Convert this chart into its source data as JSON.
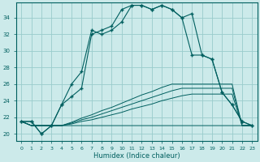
{
  "xlabel": "Humidex (Indice chaleur)",
  "x_ticks": [
    0,
    1,
    2,
    3,
    4,
    5,
    6,
    7,
    8,
    9,
    10,
    11,
    12,
    13,
    14,
    15,
    16,
    17,
    18,
    19,
    20,
    21,
    22,
    23
  ],
  "y_ticks": [
    20,
    22,
    24,
    26,
    28,
    30,
    32,
    34
  ],
  "ylim": [
    19.2,
    35.8
  ],
  "xlim": [
    -0.5,
    23.5
  ],
  "bg_color": "#cceaea",
  "line_color": "#005f5f",
  "grid_color": "#99cccc",
  "series": {
    "curve1": [
      21.5,
      21.5,
      20.0,
      21.0,
      23.5,
      26.0,
      27.5,
      32.5,
      32.0,
      32.5,
      33.5,
      35.5,
      35.5,
      35.0,
      35.5,
      35.0,
      34.0,
      34.5,
      29.5,
      29.0,
      25.0,
      23.5,
      21.5,
      21.0
    ],
    "curve2": [
      21.5,
      21.5,
      20.0,
      21.0,
      23.5,
      24.5,
      25.5,
      32.0,
      32.5,
      33.0,
      35.0,
      35.5,
      35.5,
      35.0,
      35.5,
      35.0,
      34.0,
      29.5,
      29.5,
      29.0,
      25.0,
      23.5,
      21.5,
      21.0
    ],
    "flat1": [
      21.5,
      21.0,
      21.0,
      21.0,
      21.0,
      21.0,
      21.0,
      21.0,
      21.0,
      21.0,
      21.0,
      21.0,
      21.0,
      21.0,
      21.0,
      21.0,
      21.0,
      21.0,
      21.0,
      21.0,
      21.0,
      21.0,
      21.0,
      21.0
    ],
    "diag1": [
      21.5,
      21.0,
      21.0,
      21.0,
      21.0,
      21.2,
      21.5,
      21.7,
      22.0,
      22.3,
      22.6,
      23.0,
      23.3,
      23.6,
      24.0,
      24.3,
      24.6,
      24.8,
      24.8,
      24.8,
      24.8,
      24.8,
      21.0,
      21.0
    ],
    "diag2": [
      21.5,
      21.0,
      21.0,
      21.0,
      21.0,
      21.3,
      21.7,
      22.0,
      22.4,
      22.8,
      23.2,
      23.6,
      24.0,
      24.4,
      24.8,
      25.2,
      25.5,
      25.5,
      25.5,
      25.5,
      25.5,
      25.5,
      21.0,
      21.0
    ],
    "diag3": [
      21.5,
      21.0,
      21.0,
      21.0,
      21.0,
      21.4,
      21.9,
      22.3,
      22.8,
      23.2,
      23.7,
      24.2,
      24.7,
      25.1,
      25.6,
      26.0,
      26.0,
      26.0,
      26.0,
      26.0,
      26.0,
      26.0,
      21.0,
      21.0
    ]
  }
}
